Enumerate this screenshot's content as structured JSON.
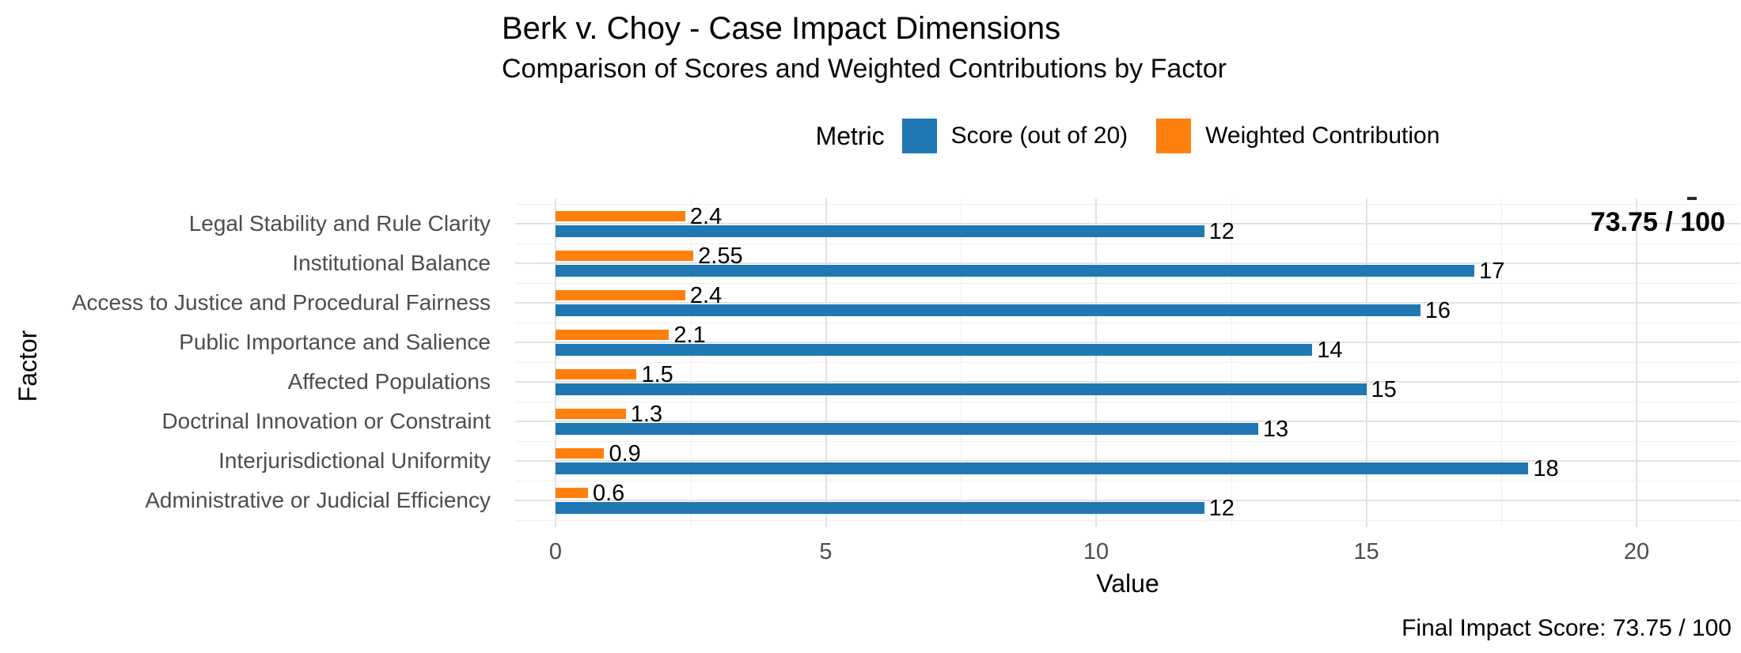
{
  "title": "Berk v. Choy - Case Impact Dimensions",
  "subtitle": "Comparison of Scores and Weighted Contributions by Factor",
  "legend": {
    "title": "Metric",
    "items": [
      {
        "label": "Score (out of 20)",
        "color": "#1f77b4"
      },
      {
        "label": "Weighted Contribution",
        "color": "#ff7f0e"
      }
    ]
  },
  "annotation": {
    "score_badge": "73.75 / 100"
  },
  "caption": "Final Impact Score: 73.75 / 100",
  "colors": {
    "score_bar": "#1f77b4",
    "weighted_bar": "#ff7f0e",
    "axis_text": "#4d4d4d",
    "grid_major": "#e2e2e2",
    "grid_minor": "#efefef"
  },
  "chart_data": {
    "type": "bar",
    "orientation": "horizontal",
    "title": "Berk v. Choy - Case Impact Dimensions",
    "subtitle": "Comparison of Scores and Weighted Contributions by Factor",
    "xlabel": "Value",
    "ylabel": "Factor",
    "xlim": [
      0,
      20
    ],
    "xticks": [
      "0",
      "5",
      "10",
      "15",
      "20"
    ],
    "xtick_values": [
      0,
      5,
      10,
      15,
      20
    ],
    "grid": true,
    "legend_position": "top-center",
    "categories": [
      "Legal Stability and Rule Clarity",
      "Institutional Balance",
      "Access to Justice and Procedural Fairness",
      "Public Importance and Salience",
      "Affected Populations",
      "Doctrinal Innovation or Constraint",
      "Interjurisdictional Uniformity",
      "Administrative or Judicial Efficiency"
    ],
    "series": [
      {
        "name": "Weighted Contribution",
        "color": "#ff7f0e",
        "values": [
          2.4,
          2.55,
          2.4,
          2.1,
          1.5,
          1.3,
          0.9,
          0.6
        ],
        "labels": [
          "2.4",
          "2.55",
          "2.4",
          "2.1",
          "1.5",
          "1.3",
          "0.9",
          "0.6"
        ]
      },
      {
        "name": "Score (out of 20)",
        "color": "#1f77b4",
        "values": [
          12,
          17,
          16,
          14,
          15,
          13,
          18,
          12
        ],
        "labels": [
          "12",
          "17",
          "16",
          "14",
          "15",
          "13",
          "18",
          "12"
        ]
      }
    ],
    "final_score_annotation": "73.75 / 100",
    "caption": "Final Impact Score: 73.75 / 100"
  }
}
